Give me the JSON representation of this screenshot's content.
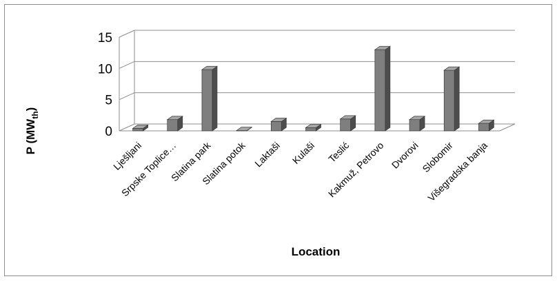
{
  "chart_data": {
    "type": "bar",
    "style": "3d-clustered-column",
    "title": "",
    "xlabel": "Location",
    "ylabel_main": "P (MW",
    "ylabel_sub": "th",
    "ylabel_close": ")",
    "ylim": [
      0,
      15
    ],
    "yticks": [
      "0",
      "5",
      "10",
      "15"
    ],
    "grid": true,
    "legend": "none",
    "bar_color": "#808080",
    "categories": [
      "Lješljani",
      "Srpske Toplice…",
      "Slatina park",
      "Slatina potok",
      "Laktaši",
      "Kulaši",
      "Teslić",
      "Kakmuž, Petrovo",
      "Dvorovi",
      "Slobomir",
      "Višegradska banja"
    ],
    "values": [
      0.4,
      1.8,
      9.8,
      0.05,
      1.5,
      0.5,
      1.9,
      13.0,
      1.8,
      9.7,
      1.2
    ]
  }
}
